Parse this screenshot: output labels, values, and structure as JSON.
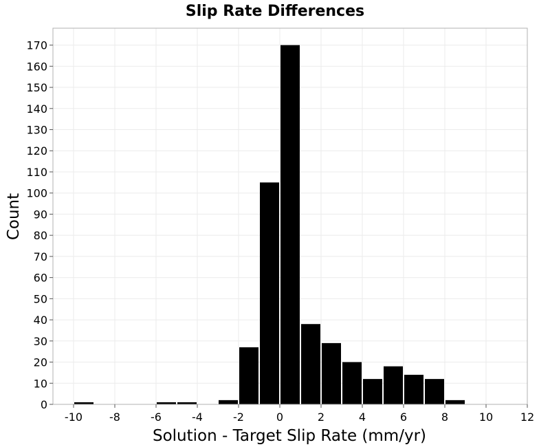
{
  "chart_data": {
    "type": "bar",
    "title": "Slip Rate Differences",
    "xlabel": "Solution - Target Slip Rate (mm/yr)",
    "ylabel": "Count",
    "xlim": [
      -11,
      12
    ],
    "ylim": [
      0,
      178
    ],
    "bin_width": 1,
    "x_ticks": [
      -10,
      -8,
      -6,
      -4,
      -2,
      0,
      2,
      4,
      6,
      8,
      10,
      12
    ],
    "y_ticks": [
      0,
      10,
      20,
      30,
      40,
      50,
      60,
      70,
      80,
      90,
      100,
      110,
      120,
      130,
      140,
      150,
      160,
      170
    ],
    "bins": [
      {
        "x": -10,
        "count": 1
      },
      {
        "x": -6,
        "count": 1
      },
      {
        "x": -5,
        "count": 1
      },
      {
        "x": -3,
        "count": 2
      },
      {
        "x": -2,
        "count": 27
      },
      {
        "x": -1,
        "count": 105
      },
      {
        "x": 0,
        "count": 170
      },
      {
        "x": 1,
        "count": 38
      },
      {
        "x": 2,
        "count": 29
      },
      {
        "x": 3,
        "count": 20
      },
      {
        "x": 4,
        "count": 12
      },
      {
        "x": 5,
        "count": 18
      },
      {
        "x": 6,
        "count": 14
      },
      {
        "x": 7,
        "count": 12
      },
      {
        "x": 8,
        "count": 2
      }
    ],
    "bar_color": "#000000",
    "grid": true,
    "grid_color": "#ebebeb",
    "frame_color": "#b0b0b0"
  }
}
